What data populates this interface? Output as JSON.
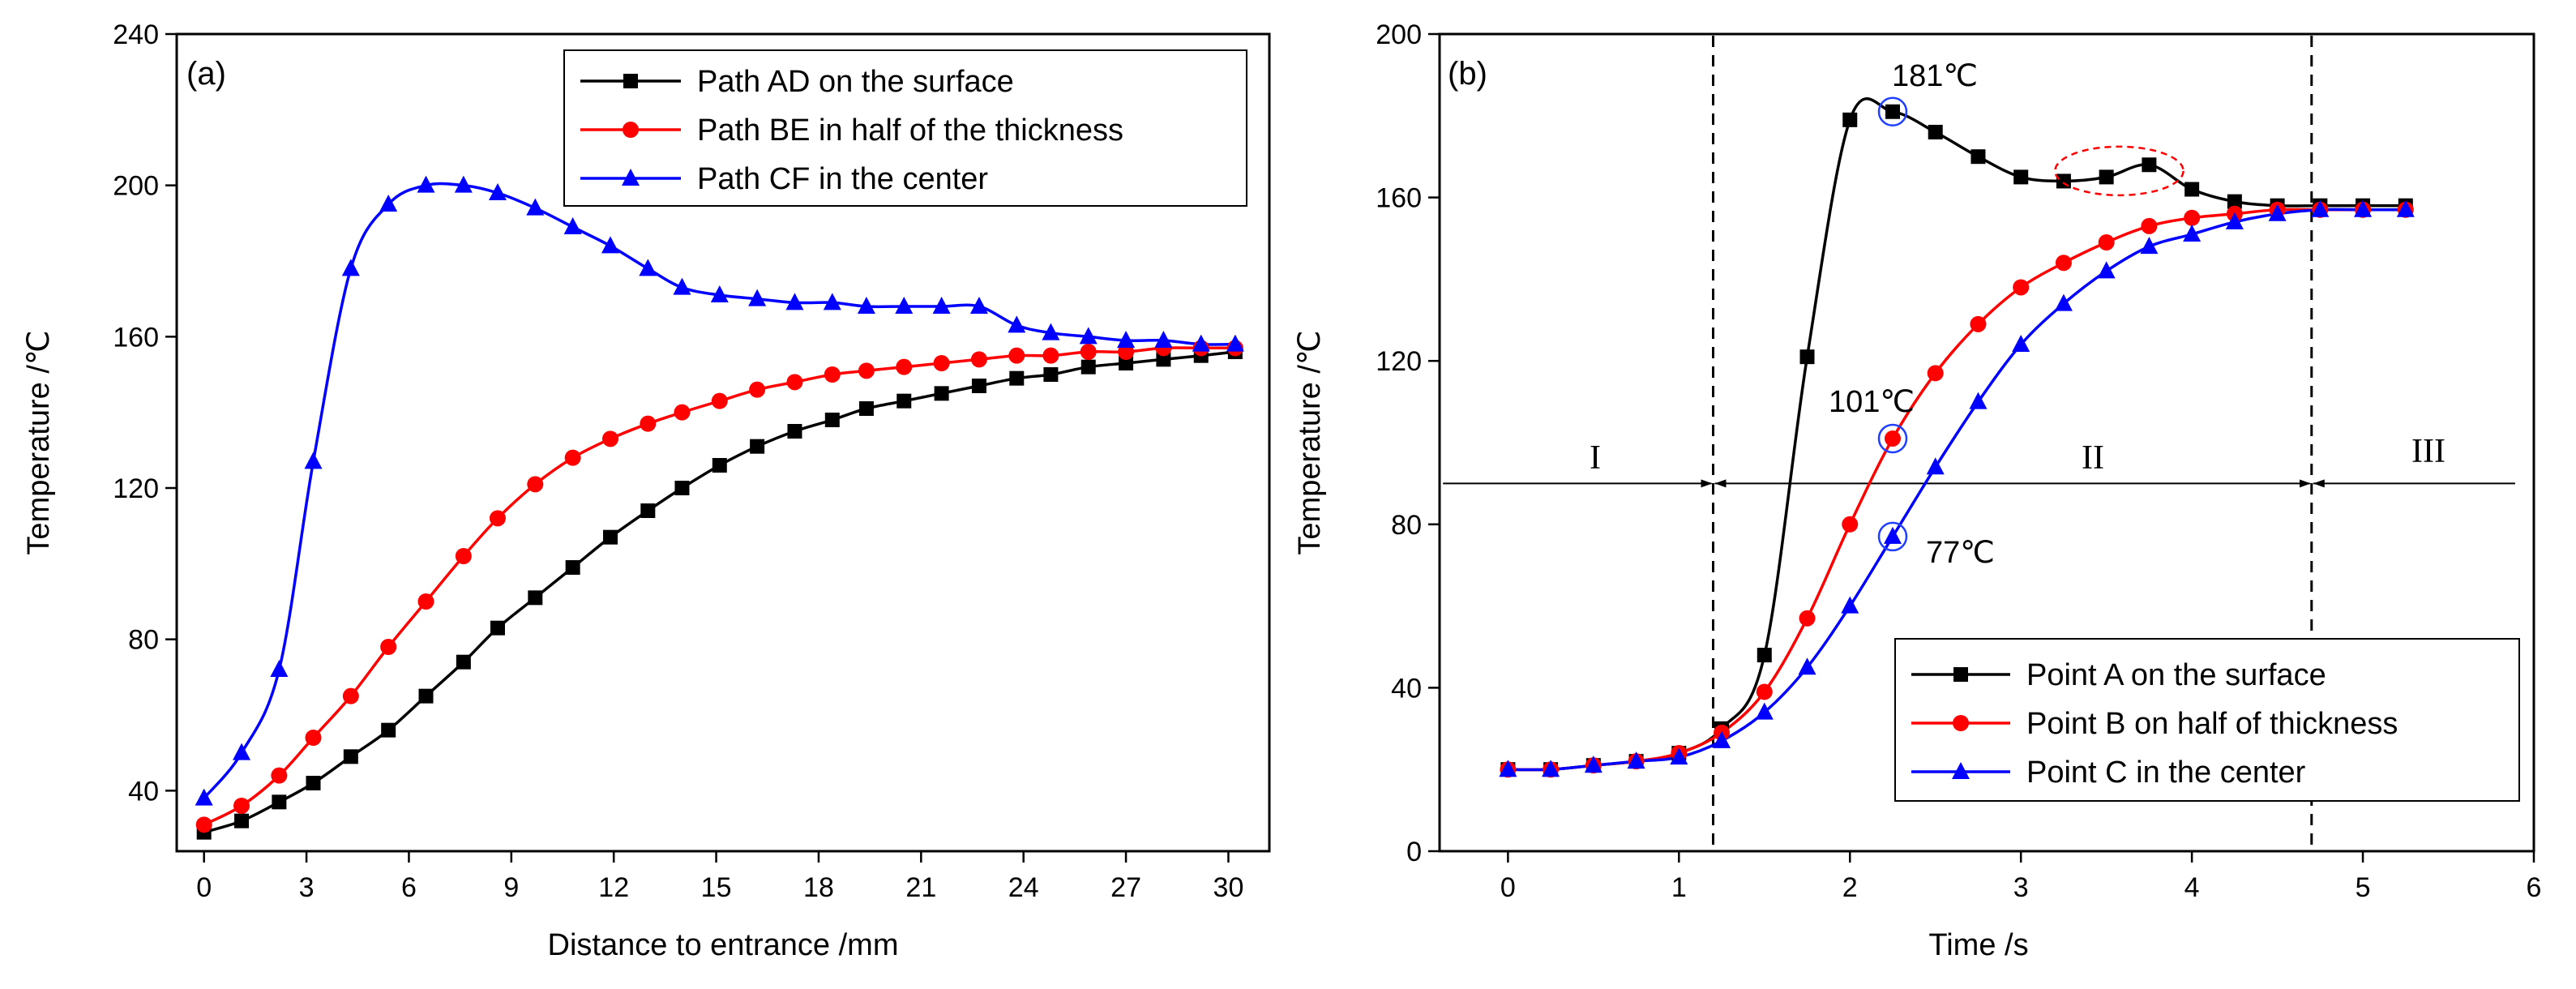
{
  "chart_data": [
    {
      "type": "line",
      "panel_label": "(a)",
      "xlabel": "Distance to entrance /mm",
      "ylabel": "Temperature  /℃",
      "xlim": [
        -0.8,
        31.2
      ],
      "ylim": [
        24,
        240
      ],
      "xticks": [
        "0",
        "3",
        "6",
        "9",
        "12",
        "15",
        "18",
        "21",
        "24",
        "27",
        "30"
      ],
      "yticks": [
        "40",
        "80",
        "120",
        "160",
        "200",
        "240"
      ],
      "legend_position": "top-right",
      "x": [
        0,
        1.1,
        2.2,
        3.2,
        4.3,
        5.4,
        6.5,
        7.6,
        8.6,
        9.7,
        10.8,
        11.9,
        13.0,
        14.0,
        15.1,
        16.2,
        17.3,
        18.4,
        19.4,
        20.5,
        21.6,
        22.7,
        23.8,
        24.8,
        25.9,
        27.0,
        28.1,
        29.2,
        30.2
      ],
      "series": [
        {
          "name": "Path AD on the surface",
          "color": "#000000",
          "marker": "square",
          "values": [
            29,
            32,
            37,
            42,
            49,
            56,
            65,
            74,
            83,
            91,
            99,
            107,
            114,
            120,
            126,
            131,
            135,
            138,
            141,
            143,
            145,
            147,
            149,
            150,
            152,
            153,
            154,
            155,
            156
          ]
        },
        {
          "name": "Path BE in half of the thickness",
          "color": "#ff0000",
          "marker": "circle",
          "values": [
            31,
            36,
            44,
            54,
            65,
            78,
            90,
            102,
            112,
            121,
            128,
            133,
            137,
            140,
            143,
            146,
            148,
            150,
            151,
            152,
            153,
            154,
            155,
            155,
            156,
            156,
            157,
            157,
            157
          ]
        },
        {
          "name": "Path CF in the center",
          "color": "#0000ff",
          "marker": "triangle",
          "values": [
            38,
            50,
            72,
            127,
            178,
            195,
            200,
            200,
            198,
            194,
            189,
            184,
            178,
            173,
            171,
            170,
            169,
            169,
            168,
            168,
            168,
            168,
            163,
            161,
            160,
            159,
            159,
            158,
            158
          ]
        }
      ]
    },
    {
      "type": "line",
      "panel_label": "(b)",
      "xlabel": "Time /s",
      "ylabel": "Temperature /℃",
      "xlim": [
        -0.4,
        6
      ],
      "ylim": [
        0,
        200
      ],
      "xticks": [
        "0",
        "1",
        "2",
        "3",
        "4",
        "5",
        "6"
      ],
      "yticks": [
        "0",
        "40",
        "80",
        "120",
        "160",
        "200"
      ],
      "legend_position": "bottom-right",
      "x": [
        0,
        0.25,
        0.5,
        0.75,
        1.0,
        1.25,
        1.5,
        1.75,
        2.0,
        2.25,
        2.5,
        2.75,
        3.0,
        3.25,
        3.5,
        3.75,
        4.0,
        4.25,
        4.5,
        4.75,
        5.0,
        5.25
      ],
      "series": [
        {
          "name": "Point A on the surface",
          "color": "#000000",
          "marker": "square",
          "values": [
            20,
            20,
            21,
            22,
            24,
            30,
            48,
            121,
            179,
            181,
            176,
            170,
            165,
            164,
            165,
            168,
            162,
            159,
            158,
            158,
            158,
            158
          ]
        },
        {
          "name": "Point B on half of thickness",
          "color": "#ff0000",
          "marker": "circle",
          "values": [
            20,
            20,
            21,
            22,
            24,
            29,
            39,
            57,
            80,
            101,
            117,
            129,
            138,
            144,
            149,
            153,
            155,
            156,
            157,
            157,
            157,
            157
          ]
        },
        {
          "name": "Point C in the center",
          "color": "#0000ff",
          "marker": "triangle",
          "values": [
            20,
            20,
            21,
            22,
            23,
            27,
            34,
            45,
            60,
            77,
            94,
            110,
            124,
            134,
            142,
            148,
            151,
            154,
            156,
            157,
            157,
            157
          ]
        }
      ],
      "vlines": [
        1.2,
        4.7
      ],
      "arrow_level": 90,
      "regions": [
        "I",
        "II",
        "III"
      ],
      "annotations": {
        "peak_label": "181℃",
        "mid_label": "101℃",
        "low_label": "77℃"
      }
    }
  ]
}
